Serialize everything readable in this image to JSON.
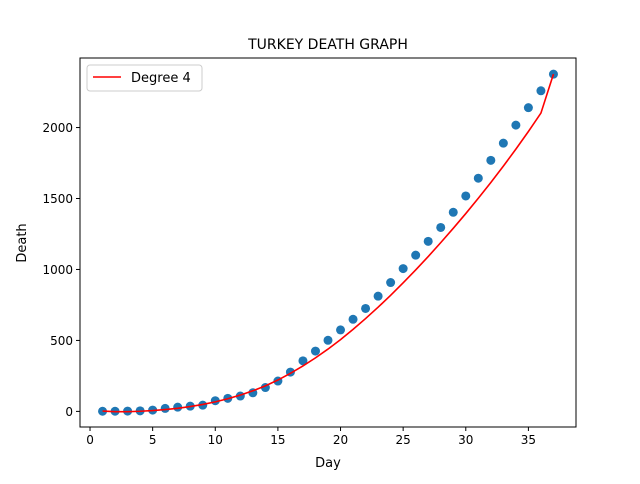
{
  "chart_data": {
    "type": "scatter",
    "title": "TURKEY DEATH GRAPH",
    "xlabel": "Day",
    "ylabel": "Death",
    "xlim": [
      -0.8,
      38.8
    ],
    "ylim": [
      -110,
      2490
    ],
    "xticks": [
      0,
      5,
      10,
      15,
      20,
      25,
      30,
      35
    ],
    "yticks": [
      0,
      500,
      1000,
      1500,
      2000
    ],
    "grid": false,
    "legend": {
      "location": "upper left",
      "entries": [
        "Degree 4"
      ]
    },
    "colors": {
      "points": "#1f77b4",
      "fit": "#ff0000"
    },
    "series": [
      {
        "kind": "points",
        "x": [
          1,
          2,
          3,
          4,
          5,
          6,
          7,
          8,
          9,
          10,
          11,
          12,
          13,
          14,
          15,
          16,
          17,
          18,
          19,
          20,
          21,
          22,
          23,
          24,
          25,
          26,
          27,
          28,
          29,
          30,
          31,
          32,
          33,
          34,
          35,
          36,
          37
        ],
        "y": [
          1,
          1,
          2,
          4,
          9,
          21,
          30,
          37,
          44,
          75,
          92,
          108,
          131,
          168,
          214,
          277,
          356,
          425,
          501,
          574,
          649,
          725,
          812,
          908,
          1006,
          1101,
          1198,
          1296,
          1403,
          1518,
          1643,
          1769,
          1890,
          2017,
          2140,
          2259,
          2376
        ]
      },
      {
        "kind": "line",
        "name": "Degree 4",
        "x": [
          1,
          2,
          3,
          4,
          5,
          6,
          7,
          8,
          9,
          10,
          11,
          12,
          13,
          14,
          15,
          16,
          17,
          18,
          19,
          20,
          21,
          22,
          23,
          24,
          25,
          26,
          27,
          28,
          29,
          30,
          31,
          32,
          33,
          34,
          35,
          36,
          37
        ],
        "y": [
          2,
          -2,
          -2,
          1,
          6,
          13,
          22,
          34,
          49,
          67,
          89,
          115,
          145,
          180,
          221,
          268,
          320,
          377,
          439,
          506,
          578,
          654,
          734,
          818,
          906,
          997,
          1091,
          1189,
          1290,
          1394,
          1502,
          1613,
          1728,
          1848,
          1972,
          2102,
          2376
        ]
      }
    ]
  }
}
